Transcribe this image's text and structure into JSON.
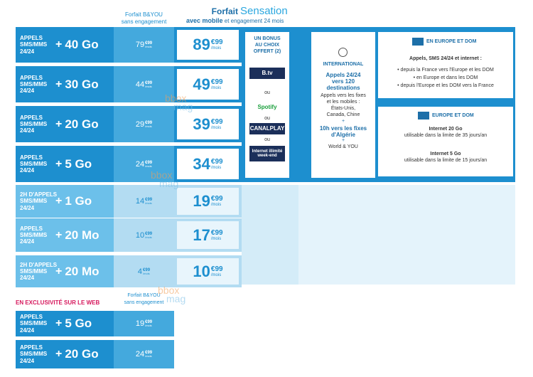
{
  "header": {
    "byou_title": "Forfait B&YOU",
    "byou_sub": "sans engagement",
    "sens_title": "Forfait",
    "sens_brand": "Sensation",
    "sens_sub_bold": "avec mobile",
    "sens_sub": "et engagement 24 mois"
  },
  "plus": "+",
  "rows": [
    {
      "label": [
        "APPELS",
        "SMS/MMS",
        "24/24"
      ],
      "size": "40 Go",
      "byou": {
        "euros": "79",
        "cents": "€99",
        "unit": "/mois"
      },
      "sens": {
        "euros": "89",
        "cents": "€99",
        "unit": "/mois"
      }
    },
    {
      "label": [
        "APPELS",
        "SMS/MMS",
        "24/24"
      ],
      "size": "30 Go",
      "byou": {
        "euros": "44",
        "cents": "€99",
        "unit": "/mois"
      },
      "sens": {
        "euros": "49",
        "cents": "€99",
        "unit": "/mois"
      }
    },
    {
      "label": [
        "APPELS",
        "SMS/MMS",
        "24/24"
      ],
      "size": "20 Go",
      "byou": {
        "euros": "29",
        "cents": "€99",
        "unit": "/mois"
      },
      "sens": {
        "euros": "39",
        "cents": "€99",
        "unit": "/mois"
      }
    },
    {
      "label": [
        "APPELS",
        "SMS/MMS",
        "24/24"
      ],
      "size": "5 Go",
      "byou": {
        "euros": "24",
        "cents": "€99",
        "unit": "/mois"
      },
      "sens": {
        "euros": "34",
        "cents": "€99",
        "unit": "/mois"
      }
    },
    {
      "label": [
        "2H D'APPELS",
        "SMS/MMS",
        "24/24"
      ],
      "size": "1 Go",
      "byou": {
        "euros": "14",
        "cents": "€99",
        "unit": "/mois"
      },
      "sens": {
        "euros": "19",
        "cents": "€99",
        "unit": "/mois"
      }
    },
    {
      "label": [
        "APPELS",
        "SMS/MMS",
        "24/24"
      ],
      "size": "20 Mo",
      "byou": {
        "euros": "10",
        "cents": "€99",
        "unit": "/mois"
      },
      "sens": {
        "euros": "17",
        "cents": "€99",
        "unit": "/mois"
      }
    },
    {
      "label": [
        "2H D'APPELS",
        "SMS/MMS",
        "24/24"
      ],
      "size": "20 Mo",
      "byou": {
        "euros": "4",
        "cents": "€99",
        "unit": "/mois"
      },
      "sens": {
        "euros": "10",
        "cents": "€99",
        "unit": "/mois"
      }
    }
  ],
  "bonus": {
    "title": [
      "UN BONUS",
      "AU CHOIX",
      "OFFERT (2)"
    ],
    "options": [
      "B.tv",
      "Spotify",
      "CANALPLAY",
      "Internet illimité week-end"
    ],
    "or": "ou"
  },
  "international": {
    "title": "INTERNATIONAL",
    "lines": [
      "Appels 24/24",
      "vers 120",
      "destinations"
    ],
    "detail": [
      "Appels vers les fixes",
      "et les mobiles :",
      "États-Unis,",
      "Canada, Chine"
    ],
    "extra": [
      "10h vers les fixes",
      "d'Algérie"
    ],
    "world": "World & YOU"
  },
  "europe": {
    "title": "EN EUROPE ET DOM",
    "intro": "Appels, SMS 24/24 et internet :",
    "bullets": [
      "• depuis la France vers l'Europe et les DOM",
      "• en Europe et dans les DOM",
      "• depuis l'Europe et les DOM vers la France"
    ]
  },
  "europe2": {
    "title": "EUROPE ET DOM",
    "items": [
      {
        "name": "Internet 20 Go",
        "note": "utilisable dans la limite de 35 jours/an"
      },
      {
        "name": "Internet 5 Go",
        "note": "utilisable dans la limite de 15 jours/an"
      }
    ]
  },
  "web": {
    "title": "EN EXCLUSIVITÉ SUR LE WEB",
    "byou_title": "Forfait B&YOU",
    "byou_sub": "sans engagement",
    "rows": [
      {
        "label": [
          "APPELS",
          "SMS/MMS",
          "24/24"
        ],
        "size": "5 Go",
        "byou": {
          "euros": "19",
          "cents": "€99",
          "unit": "/mois"
        }
      },
      {
        "label": [
          "APPELS",
          "SMS/MMS",
          "24/24"
        ],
        "size": "20 Go",
        "byou": {
          "euros": "24",
          "cents": "€99",
          "unit": "/mois"
        }
      }
    ]
  },
  "watermark": [
    "bbox",
    "mag"
  ]
}
